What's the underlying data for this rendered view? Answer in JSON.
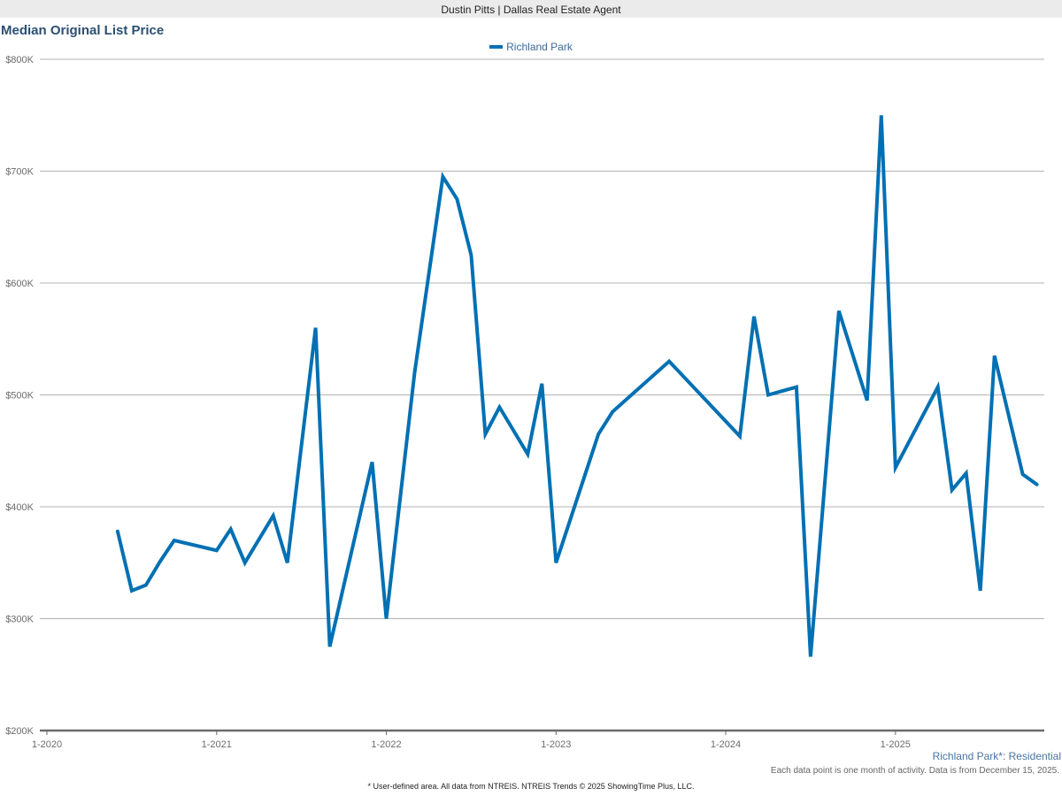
{
  "header": {
    "agent": "Dustin Pitts | Dallas Real Estate Agent"
  },
  "chart": {
    "title": "Median Original List Price",
    "legend": "Richland Park",
    "area_label": "Richland Park*: Residential",
    "note": "Each data point is one month of activity. Data is from December 15, 2025.",
    "footer": "* User-defined area. All data from NTREIS. NTREIS Trends © 2025 ShowingTime Plus, LLC.",
    "colors": {
      "line": "#0070b3",
      "grid": "#b3b3b3",
      "axis": "#6b6b6b",
      "title": "#2b4f73"
    }
  },
  "chart_data": {
    "type": "line",
    "title": "Median Original List Price",
    "xlabel": "",
    "ylabel": "",
    "ylim": [
      200000,
      800000
    ],
    "yticks": [
      200000,
      300000,
      400000,
      500000,
      600000,
      700000,
      800000
    ],
    "ytick_labels": [
      "$200K",
      "$300K",
      "$400K",
      "$500K",
      "$600K",
      "$700K",
      "$800K"
    ],
    "xticks": [
      "1-2020",
      "1-2021",
      "1-2022",
      "1-2023",
      "1-2024",
      "1-2025"
    ],
    "grid": true,
    "legend_position": "top-center",
    "series": [
      {
        "name": "Richland Park",
        "points": [
          {
            "x": "2020-06",
            "y": 378000
          },
          {
            "x": "2020-07",
            "y": 325000
          },
          {
            "x": "2020-08",
            "y": 330000
          },
          {
            "x": "2020-09",
            "y": 351000
          },
          {
            "x": "2020-10",
            "y": 370000
          },
          {
            "x": "2021-01",
            "y": 361000
          },
          {
            "x": "2021-02",
            "y": 380000
          },
          {
            "x": "2021-03",
            "y": 350000
          },
          {
            "x": "2021-04",
            "y": 371000
          },
          {
            "x": "2021-05",
            "y": 392000
          },
          {
            "x": "2021-06",
            "y": 350000
          },
          {
            "x": "2021-08",
            "y": 560000
          },
          {
            "x": "2021-09",
            "y": 275000
          },
          {
            "x": "2021-12",
            "y": 440000
          },
          {
            "x": "2022-01",
            "y": 300000
          },
          {
            "x": "2022-03",
            "y": 520000
          },
          {
            "x": "2022-05",
            "y": 695000
          },
          {
            "x": "2022-06",
            "y": 675000
          },
          {
            "x": "2022-07",
            "y": 625000
          },
          {
            "x": "2022-08",
            "y": 465000
          },
          {
            "x": "2022-09",
            "y": 489000
          },
          {
            "x": "2022-11",
            "y": 447000
          },
          {
            "x": "2022-12",
            "y": 510000
          },
          {
            "x": "2023-01",
            "y": 350000
          },
          {
            "x": "2023-04",
            "y": 465000
          },
          {
            "x": "2023-05",
            "y": 485000
          },
          {
            "x": "2023-09",
            "y": 530000
          },
          {
            "x": "2024-02",
            "y": 463000
          },
          {
            "x": "2024-03",
            "y": 570000
          },
          {
            "x": "2024-04",
            "y": 500000
          },
          {
            "x": "2024-06",
            "y": 507000
          },
          {
            "x": "2024-07",
            "y": 266000
          },
          {
            "x": "2024-09",
            "y": 575000
          },
          {
            "x": "2024-11",
            "y": 495000
          },
          {
            "x": "2024-12",
            "y": 750000
          },
          {
            "x": "2025-01",
            "y": 435000
          },
          {
            "x": "2025-04",
            "y": 507000
          },
          {
            "x": "2025-05",
            "y": 415000
          },
          {
            "x": "2025-06",
            "y": 430000
          },
          {
            "x": "2025-07",
            "y": 325000
          },
          {
            "x": "2025-08",
            "y": 535000
          },
          {
            "x": "2025-10",
            "y": 429000
          },
          {
            "x": "2025-11",
            "y": 420000
          }
        ]
      }
    ]
  }
}
